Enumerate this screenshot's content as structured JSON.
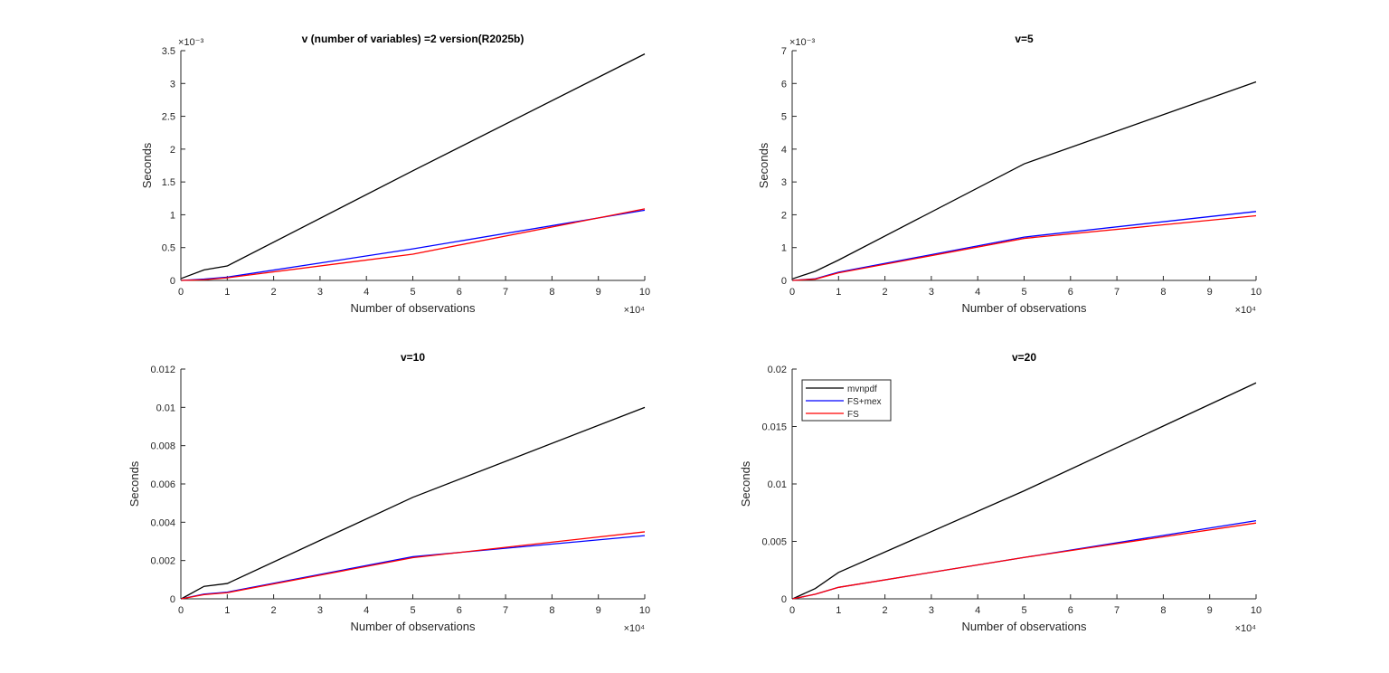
{
  "legend": {
    "entries": [
      "mvnpdf",
      "FS+mex",
      "FS"
    ],
    "colors": [
      "#000000",
      "#0000ff",
      "#ff0000"
    ],
    "placement": "top-left of bottom-right subplot"
  },
  "chart_data": [
    {
      "type": "line",
      "title": "v (number of variables) =2 version(R2025b)",
      "xlabel": "Number of observations",
      "ylabel": "Seconds",
      "x_exponent_label": "×10⁴",
      "y_exponent_label": "×10⁻³",
      "xlim": [
        0,
        100000
      ],
      "ylim": [
        0,
        0.0035
      ],
      "x_ticks": [
        "0",
        "1",
        "2",
        "3",
        "4",
        "5",
        "6",
        "7",
        "8",
        "9",
        "10"
      ],
      "y_ticks": [
        "0",
        "0.5",
        "1",
        "1.5",
        "2",
        "2.5",
        "3",
        "3.5"
      ],
      "grid": false,
      "x": [
        100,
        5000,
        10000,
        50000,
        100000
      ],
      "series": [
        {
          "name": "mvnpdf",
          "color": "#000000",
          "values": [
            3e-05,
            0.00016,
            0.00022,
            0.00167,
            0.00345
          ]
        },
        {
          "name": "FS+mex",
          "color": "#0000ff",
          "values": [
            0.0,
            2e-05,
            5e-05,
            0.00048,
            0.00107
          ]
        },
        {
          "name": "FS",
          "color": "#ff0000",
          "values": [
            0.0,
            1e-05,
            4e-05,
            0.0004,
            0.00109
          ]
        }
      ]
    },
    {
      "type": "line",
      "title": "v=5",
      "xlabel": "Number of observations",
      "ylabel": "Seconds",
      "x_exponent_label": "×10⁴",
      "y_exponent_label": "×10⁻³",
      "xlim": [
        0,
        100000
      ],
      "ylim": [
        0,
        0.007
      ],
      "x_ticks": [
        "0",
        "1",
        "2",
        "3",
        "4",
        "5",
        "6",
        "7",
        "8",
        "9",
        "10"
      ],
      "y_ticks": [
        "0",
        "1",
        "2",
        "3",
        "4",
        "5",
        "6",
        "7"
      ],
      "grid": false,
      "x": [
        100,
        5000,
        10000,
        50000,
        100000
      ],
      "series": [
        {
          "name": "mvnpdf",
          "color": "#000000",
          "values": [
            5e-05,
            0.00028,
            0.00062,
            0.00355,
            0.00605
          ]
        },
        {
          "name": "FS+mex",
          "color": "#0000ff",
          "values": [
            0.0,
            5e-05,
            0.00025,
            0.00132,
            0.0021
          ]
        },
        {
          "name": "FS",
          "color": "#ff0000",
          "values": [
            0.0,
            4e-05,
            0.00023,
            0.00128,
            0.00197
          ]
        }
      ]
    },
    {
      "type": "line",
      "title": "v=10",
      "xlabel": "Number of observations",
      "ylabel": "Seconds",
      "x_exponent_label": "×10⁴",
      "y_exponent_label": "",
      "xlim": [
        0,
        100000
      ],
      "ylim": [
        0,
        0.012
      ],
      "x_ticks": [
        "0",
        "1",
        "2",
        "3",
        "4",
        "5",
        "6",
        "7",
        "8",
        "9",
        "10"
      ],
      "y_ticks": [
        "0",
        "0.002",
        "0.004",
        "0.006",
        "0.008",
        "0.01",
        "0.012"
      ],
      "grid": false,
      "x": [
        100,
        5000,
        10000,
        50000,
        100000
      ],
      "series": [
        {
          "name": "mvnpdf",
          "color": "#000000",
          "values": [
            0.0,
            0.00065,
            0.0008,
            0.0053,
            0.01
          ]
        },
        {
          "name": "FS+mex",
          "color": "#0000ff",
          "values": [
            0.0,
            0.00025,
            0.00035,
            0.0022,
            0.0033
          ]
        },
        {
          "name": "FS",
          "color": "#ff0000",
          "values": [
            0.0,
            0.00022,
            0.00032,
            0.00215,
            0.0035
          ]
        }
      ]
    },
    {
      "type": "line",
      "title": "v=20",
      "xlabel": "Number of observations",
      "ylabel": "Seconds",
      "x_exponent_label": "×10⁴",
      "y_exponent_label": "",
      "xlim": [
        0,
        100000
      ],
      "ylim": [
        0,
        0.02
      ],
      "x_ticks": [
        "0",
        "1",
        "2",
        "3",
        "4",
        "5",
        "6",
        "7",
        "8",
        "9",
        "10"
      ],
      "y_ticks": [
        "0",
        "0.005",
        "0.01",
        "0.015",
        "0.02"
      ],
      "grid": false,
      "x": [
        100,
        5000,
        10000,
        50000,
        100000
      ],
      "series": [
        {
          "name": "mvnpdf",
          "color": "#000000",
          "values": [
            0.0,
            0.0009,
            0.0023,
            0.0094,
            0.0188
          ]
        },
        {
          "name": "FS+mex",
          "color": "#0000ff",
          "values": [
            0.0,
            0.0004,
            0.001,
            0.0036,
            0.0068
          ]
        },
        {
          "name": "FS",
          "color": "#ff0000",
          "values": [
            0.0,
            0.0004,
            0.001,
            0.0036,
            0.0066
          ]
        }
      ]
    }
  ]
}
